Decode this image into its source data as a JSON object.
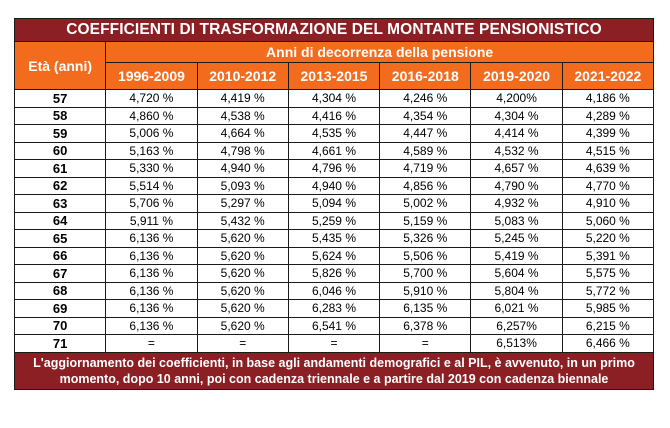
{
  "title": "COEFFICIENTI DI TRASFORMAZIONE DEL MONTANTE PENSIONISTICO",
  "age_header": "Età (anni)",
  "years_header": "Anni di decorrenza della pensione",
  "columns": [
    "1996-2009",
    "2010-2012",
    "2013-2015",
    "2016-2018",
    "2019-2020",
    "2021-2022"
  ],
  "rows": [
    {
      "age": "57",
      "values": [
        "4,720 %",
        "4,419 %",
        "4,304 %",
        "4,246 %",
        "4,200%",
        "4,186 %"
      ]
    },
    {
      "age": "58",
      "values": [
        "4,860 %",
        "4,538 %",
        "4,416 %",
        "4,354 %",
        "4,304 %",
        "4,289 %"
      ]
    },
    {
      "age": "59",
      "values": [
        "5,006 %",
        "4,664 %",
        "4,535 %",
        "4,447 %",
        "4,414 %",
        "4,399 %"
      ]
    },
    {
      "age": "60",
      "values": [
        "5,163 %",
        "4,798 %",
        "4,661 %",
        "4,589 %",
        "4,532 %",
        "4,515 %"
      ]
    },
    {
      "age": "61",
      "values": [
        "5,330 %",
        "4,940 %",
        "4,796 %",
        "4,719 %",
        "4,657 %",
        "4,639 %"
      ]
    },
    {
      "age": "62",
      "values": [
        "5,514 %",
        "5,093 %",
        "4,940 %",
        "4,856 %",
        "4,790 %",
        "4,770 %"
      ]
    },
    {
      "age": "63",
      "values": [
        "5,706 %",
        "5,297 %",
        "5,094 %",
        "5,002 %",
        "4,932 %",
        "4,910 %"
      ]
    },
    {
      "age": "64",
      "values": [
        "5,911 %",
        "5,432 %",
        "5,259 %",
        "5,159 %",
        "5,083 %",
        "5,060 %"
      ]
    },
    {
      "age": "65",
      "values": [
        "6,136 %",
        "5,620 %",
        "5,435 %",
        "5,326 %",
        "5,245 %",
        "5,220 %"
      ]
    },
    {
      "age": "66",
      "values": [
        "6,136 %",
        "5,620 %",
        "5,624 %",
        "5,506 %",
        "5,419 %",
        "5,391 %"
      ]
    },
    {
      "age": "67",
      "values": [
        "6,136 %",
        "5,620 %",
        "5,826 %",
        "5,700 %",
        "5,604 %",
        "5,575 %"
      ]
    },
    {
      "age": "68",
      "values": [
        "6,136 %",
        "5,620 %",
        "6,046 %",
        "5,910 %",
        "5,804 %",
        "5,772 %"
      ]
    },
    {
      "age": "69",
      "values": [
        "6,136 %",
        "5,620 %",
        "6,283 %",
        "6,135 %",
        "6,021 %",
        "5,985 %"
      ]
    },
    {
      "age": "70",
      "values": [
        "6,136 %",
        "5,620 %",
        "6,541 %",
        "6,378 %",
        "6,257%",
        "6,215 %"
      ]
    },
    {
      "age": "71",
      "values": [
        "=",
        "=",
        "=",
        "=",
        "6,513%",
        "6,466 %"
      ]
    }
  ],
  "footnote": "L'aggiornamento dei coefficienti, in base agli andamenti demografici e al PIL, è avvenuto, in un primo momento, dopo 10 anni, poi con cadenza triennale e a partire dal 2019 con cadenza biennale",
  "colors": {
    "title_bg": "#8b1f24",
    "header_bg": "#f36b1c",
    "text_on_color": "#ffffff"
  }
}
